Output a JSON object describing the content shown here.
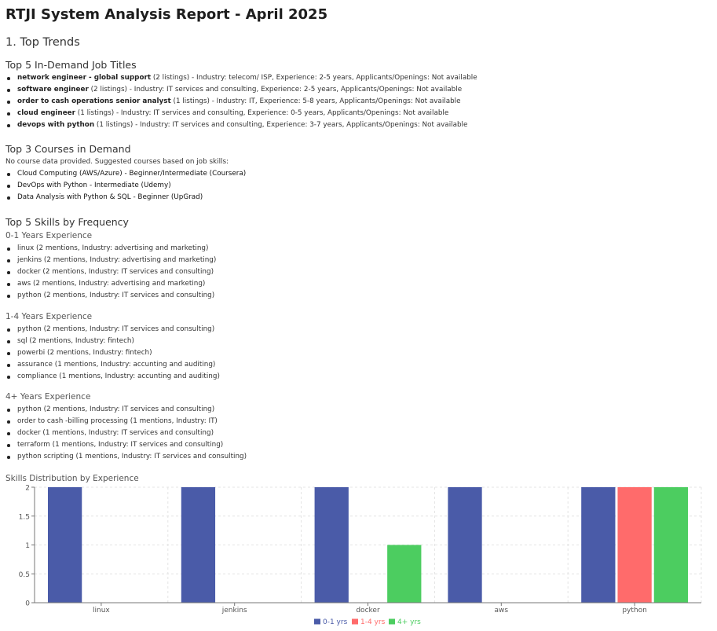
{
  "report": {
    "title": "RTJI System Analysis Report - April 2025",
    "section_heading": "1. Top Trends"
  },
  "jobs": {
    "heading": "Top 5 In-Demand Job Titles",
    "items": [
      {
        "title": "network engineer - global support",
        "detail": " (2 listings) - Industry: telecom/ ISP, Experience: 2-5 years, Applicants/Openings: Not available"
      },
      {
        "title": "software engineer",
        "detail": " (2 listings) - Industry: IT services and consulting, Experience: 2-5 years, Applicants/Openings: Not available"
      },
      {
        "title": "order to cash operations senior analyst",
        "detail": " (1 listings) - Industry: IT, Experience: 5-8 years, Applicants/Openings: Not available"
      },
      {
        "title": "cloud engineer",
        "detail": " (1 listings) - Industry: IT services and consulting, Experience: 0-5 years, Applicants/Openings: Not available"
      },
      {
        "title": "devops with python",
        "detail": " (1 listings) - Industry: IT services and consulting, Experience: 3-7 years, Applicants/Openings: Not available"
      }
    ]
  },
  "courses": {
    "heading": "Top 3 Courses in Demand",
    "note": "No course data provided. Suggested courses based on job skills:",
    "items": [
      "Cloud Computing (AWS/Azure) - Beginner/Intermediate (Coursera)",
      "DevOps with Python - Intermediate (Udemy)",
      "Data Analysis with Python & SQL - Beginner (UpGrad)"
    ]
  },
  "skills": {
    "heading": "Top 5 Skills by Frequency",
    "groups": [
      {
        "label": "0-1 Years Experience",
        "items": [
          "linux (2 mentions, Industry: advertising and marketing)",
          "jenkins (2 mentions, Industry: advertising and marketing)",
          "docker (2 mentions, Industry: IT services and consulting)",
          "aws (2 mentions, Industry: advertising and marketing)",
          "python (2 mentions, Industry: IT services and consulting)"
        ]
      },
      {
        "label": "1-4 Years Experience",
        "items": [
          "python (2 mentions, Industry: IT services and consulting)",
          "sql (2 mentions, Industry: fintech)",
          "powerbi (2 mentions, Industry: fintech)",
          "assurance (1 mentions, Industry: accunting and auditing)",
          "compliance (1 mentions, Industry: accunting and auditing)"
        ]
      },
      {
        "label": "4+ Years Experience",
        "items": [
          "python (2 mentions, Industry: IT services and consulting)",
          "order to cash -billing processing (1 mentions, Industry: IT)",
          "docker (1 mentions, Industry: IT services and consulting)",
          "terraform (1 mentions, Industry: IT services and consulting)",
          "python scripting (1 mentions, Industry: IT services and consulting)"
        ]
      }
    ]
  },
  "chart_data": {
    "type": "bar",
    "title": "Skills Distribution by Experience",
    "categories": [
      "linux",
      "jenkins",
      "docker",
      "aws",
      "python"
    ],
    "series": [
      {
        "name": "0-1 yrs",
        "color": "#4a5ba8",
        "values": [
          2,
          2,
          2,
          2,
          2
        ]
      },
      {
        "name": "1-4 yrs",
        "color": "#ff6b6b",
        "values": [
          0,
          0,
          0,
          0,
          2
        ]
      },
      {
        "name": "4+ yrs",
        "color": "#4ccd60",
        "values": [
          0,
          0,
          1,
          0,
          2
        ]
      }
    ],
    "ylim": [
      0,
      2
    ],
    "yticks": [
      "0",
      "0.5",
      "1",
      "1.5",
      "2"
    ],
    "grid": true,
    "legend": "bottom"
  }
}
